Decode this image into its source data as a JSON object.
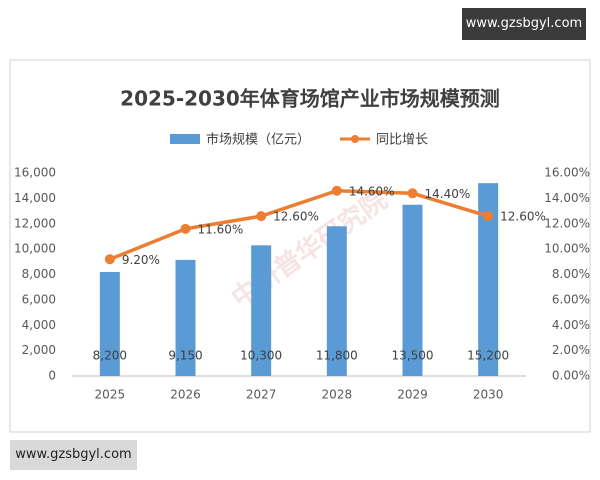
{
  "header_badge": "www.gzsbgyl.com",
  "footer_badge": "www.gzsbgyl.com",
  "watermark": "中研普华研究院",
  "chart_data": {
    "type": "bar",
    "title": "2025-2030年体育场馆产业市场规模预测",
    "categories": [
      "2025",
      "2026",
      "2027",
      "2028",
      "2029",
      "2030"
    ],
    "series": [
      {
        "name": "市场规模（亿元）",
        "type": "bar",
        "color": "#5b9bd5",
        "values": [
          8200,
          9150,
          10300,
          11800,
          13500,
          15200
        ],
        "value_labels": [
          "8,200",
          "9,150",
          "10,300",
          "11,800",
          "13,500",
          "15,200"
        ]
      },
      {
        "name": "同比增长",
        "type": "line",
        "axis": "y2",
        "color": "#ed7d31",
        "values": [
          9.2,
          11.6,
          12.6,
          14.6,
          14.4,
          12.6
        ],
        "value_labels": [
          "9.20%",
          "11.60%",
          "12.60%",
          "14.60%",
          "14.40%",
          "12.60%"
        ]
      }
    ],
    "ylim": [
      0,
      16000
    ],
    "yticks": [
      0,
      {
        "value": 2000,
        "label": "2,000"
      },
      {
        "value": 4000,
        "label": "4,000"
      },
      {
        "value": 6000,
        "label": "6,000"
      },
      {
        "value": 8000,
        "label": "8,000"
      },
      {
        "value": 10000,
        "label": "10,000"
      },
      {
        "value": 12000,
        "label": "12,000"
      },
      {
        "value": 14000,
        "label": "14,000"
      },
      {
        "value": 16000,
        "label": "16,000"
      }
    ],
    "y2lim": [
      0,
      16
    ],
    "y2ticks": [
      {
        "value": 0,
        "label": "0.00%"
      },
      {
        "value": 2,
        "label": "2.00%"
      },
      {
        "value": 4,
        "label": "4.00%"
      },
      {
        "value": 6,
        "label": "6.00%"
      },
      {
        "value": 8,
        "label": "8.00%"
      },
      {
        "value": 10,
        "label": "10.00%"
      },
      {
        "value": 12,
        "label": "12.00%"
      },
      {
        "value": 14,
        "label": "14.00%"
      },
      {
        "value": 16,
        "label": "16.00%"
      }
    ],
    "legend": "top",
    "grid": false
  }
}
